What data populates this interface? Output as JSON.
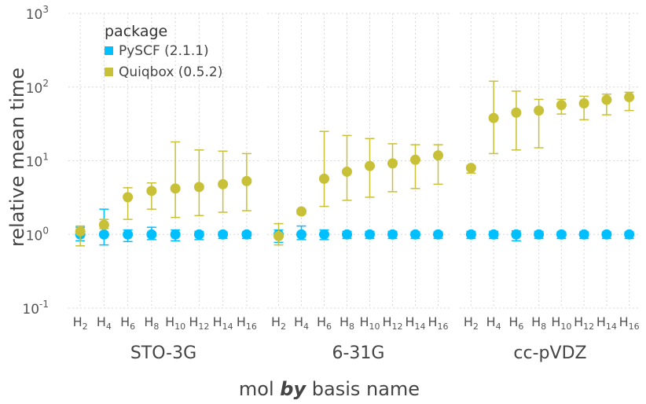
{
  "chart_data": {
    "type": "scatter",
    "ylabel": "relative mean time",
    "xlabel": {
      "prefix": "mol",
      "by": "by",
      "suffix": "basis name"
    },
    "yscale": "log10",
    "ylim": [
      0.1,
      1000
    ],
    "yticks": [
      {
        "value": 0.1,
        "base": "10",
        "exp": "-1"
      },
      {
        "value": 1,
        "base": "10",
        "exp": "0"
      },
      {
        "value": 10,
        "base": "10",
        "exp": "1"
      },
      {
        "value": 100,
        "base": "10",
        "exp": "2"
      },
      {
        "value": 1000,
        "base": "10",
        "exp": "3"
      }
    ],
    "categories": [
      {
        "base": "H",
        "sub": "2"
      },
      {
        "base": "H",
        "sub": "4"
      },
      {
        "base": "H",
        "sub": "6"
      },
      {
        "base": "H",
        "sub": "8"
      },
      {
        "base": "H",
        "sub": "10"
      },
      {
        "base": "H",
        "sub": "12"
      },
      {
        "base": "H",
        "sub": "14"
      },
      {
        "base": "H",
        "sub": "16"
      }
    ],
    "grid": true,
    "legend": {
      "title": "package",
      "position": "top-left",
      "entries": [
        {
          "label": "PySCF (2.1.1)",
          "color": "#00bfff"
        },
        {
          "label": "Quiqbox (0.5.2)",
          "color": "#c8c036"
        }
      ]
    },
    "facets": [
      {
        "name": "STO-3G",
        "series": [
          {
            "values": [
              1.0,
              1.0,
              1.0,
              1.0,
              1.0,
              1.0,
              1.0,
              1.0
            ],
            "lower": [
              0.82,
              0.72,
              0.8,
              0.85,
              0.82,
              0.85,
              0.88,
              0.88
            ],
            "upper": [
              1.25,
              2.2,
              1.15,
              1.25,
              1.15,
              1.1,
              1.08,
              1.08
            ]
          },
          {
            "values": [
              1.1,
              1.35,
              3.2,
              3.9,
              4.2,
              4.4,
              4.8,
              5.3
            ],
            "lower": [
              0.7,
              1.2,
              1.6,
              2.2,
              1.7,
              1.8,
              2.0,
              2.1
            ],
            "upper": [
              1.3,
              1.6,
              4.3,
              5.0,
              18.0,
              14.0,
              13.5,
              12.5
            ]
          }
        ]
      },
      {
        "name": "6-31G",
        "series": [
          {
            "values": [
              1.0,
              1.0,
              1.0,
              1.0,
              1.0,
              1.0,
              1.0,
              1.0
            ],
            "lower": [
              0.78,
              0.85,
              0.85,
              0.88,
              0.88,
              0.88,
              0.88,
              0.88
            ],
            "upper": [
              1.15,
              1.3,
              1.15,
              1.1,
              1.1,
              1.1,
              1.08,
              1.08
            ]
          },
          {
            "values": [
              0.95,
              2.05,
              5.7,
              7.1,
              8.5,
              9.2,
              10.3,
              11.8
            ],
            "lower": [
              0.72,
              1.9,
              2.4,
              2.9,
              3.2,
              3.8,
              4.2,
              4.8
            ],
            "upper": [
              1.4,
              2.2,
              25.0,
              22.0,
              20.0,
              17.0,
              16.5,
              16.5
            ]
          }
        ]
      },
      {
        "name": "cc-pVDZ",
        "series": [
          {
            "values": [
              1.0,
              1.0,
              1.0,
              1.0,
              1.0,
              1.0,
              1.0,
              1.0
            ],
            "lower": [
              0.88,
              0.88,
              0.82,
              0.88,
              0.88,
              0.88,
              0.88,
              0.88
            ],
            "upper": [
              1.1,
              1.1,
              1.12,
              1.1,
              1.08,
              1.08,
              1.08,
              1.08
            ]
          },
          {
            "values": [
              8.0,
              38.0,
              45.0,
              48.0,
              57.0,
              60.0,
              67.0,
              73.0
            ],
            "lower": [
              6.8,
              12.5,
              14.0,
              15.0,
              43.0,
              36.0,
              42.0,
              48.0
            ],
            "upper": [
              8.6,
              120.0,
              88.0,
              68.0,
              68.0,
              75.0,
              80.0,
              85.0
            ]
          }
        ]
      }
    ]
  }
}
